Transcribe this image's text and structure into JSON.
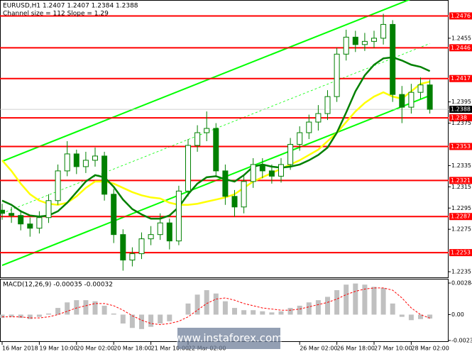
{
  "chart_data": [
    {
      "type": "candlestick",
      "title": "EURUSD,H1  1.2407 1.2407 1.2384 1.2388",
      "subtitle": "Channel size = 112 Slope = 1.29",
      "categories": [
        "16 Mar 2018",
        null,
        null,
        null,
        "19 Mar 10:00",
        null,
        null,
        null,
        "20 Mar 02:00",
        null,
        null,
        null,
        "20 Mar 18:00",
        null,
        null,
        null,
        "21 Mar 10:00",
        null,
        null,
        null,
        "22 Mar 02:00",
        null,
        null,
        null,
        null,
        null,
        null,
        null,
        null,
        null,
        null,
        null,
        "26 Mar 02:00",
        null,
        null,
        null,
        "26 Mar 18:00",
        null,
        null,
        null,
        "27 Mar 10:00",
        null,
        null,
        null,
        "28 Mar 02:00",
        null,
        null
      ],
      "open": [
        1.2293,
        1.229,
        1.2288,
        1.228,
        1.2276,
        1.2286,
        1.2302,
        1.233,
        1.2346,
        1.2334,
        1.234,
        1.2344,
        1.2308,
        1.227,
        1.2246,
        1.2252,
        1.2266,
        1.227,
        1.2281,
        1.2264,
        1.2311,
        1.2354,
        1.2366,
        1.237,
        1.233,
        1.2306,
        1.2296,
        1.232,
        1.2336,
        1.233,
        1.2325,
        1.2336,
        1.2355,
        1.2366,
        1.2376,
        1.2384,
        1.24,
        1.244,
        1.2456,
        1.2449,
        1.2452,
        1.2455,
        1.2468,
        1.2402,
        1.239,
        1.2404,
        1.2411
      ],
      "high": [
        1.2299,
        1.2296,
        1.2293,
        1.2286,
        1.2292,
        1.2308,
        1.2336,
        1.2358,
        1.235,
        1.2348,
        1.2352,
        1.2348,
        1.2313,
        1.2275,
        1.2258,
        1.2272,
        1.2278,
        1.229,
        1.2285,
        1.2316,
        1.236,
        1.2373,
        1.2386,
        1.2375,
        1.2336,
        1.2312,
        1.2326,
        1.2342,
        1.2342,
        1.2336,
        1.2342,
        1.2361,
        1.2372,
        1.2383,
        1.2392,
        1.2406,
        1.2446,
        1.2463,
        1.2462,
        1.246,
        1.2462,
        1.2478,
        1.2472,
        1.241,
        1.2412,
        1.2418,
        1.2416
      ],
      "low": [
        1.2284,
        1.2281,
        1.2274,
        1.2268,
        1.2271,
        1.2281,
        1.2298,
        1.2325,
        1.2327,
        1.2328,
        1.2334,
        1.2302,
        1.2262,
        1.2236,
        1.224,
        1.2247,
        1.226,
        1.2265,
        1.2256,
        1.226,
        1.2306,
        1.2348,
        1.2358,
        1.2324,
        1.2298,
        1.2287,
        1.229,
        1.2314,
        1.2323,
        1.2318,
        1.2319,
        1.2331,
        1.2349,
        1.236,
        1.2368,
        1.2378,
        1.2395,
        1.2434,
        1.2442,
        1.2443,
        1.2446,
        1.2449,
        1.2395,
        1.2375,
        1.2384,
        1.2398,
        1.2384
      ],
      "close": [
        1.229,
        1.2288,
        1.228,
        1.2276,
        1.2286,
        1.2302,
        1.233,
        1.2346,
        1.2334,
        1.234,
        1.2344,
        1.2308,
        1.227,
        1.2246,
        1.2252,
        1.2266,
        1.227,
        1.2281,
        1.2264,
        1.2311,
        1.2354,
        1.2366,
        1.237,
        1.233,
        1.2306,
        1.2296,
        1.232,
        1.2336,
        1.233,
        1.2325,
        1.2336,
        1.2355,
        1.2366,
        1.2376,
        1.2384,
        1.24,
        1.244,
        1.2456,
        1.2449,
        1.2452,
        1.2455,
        1.2468,
        1.2402,
        1.239,
        1.2404,
        1.2411,
        1.2388
      ],
      "color": "#008000",
      "moving_averages": [
        {
          "color": "#ffff00",
          "values": [
            1.234,
            1.233,
            1.2318,
            1.2308,
            1.2302,
            1.2299,
            1.2298,
            1.23,
            1.2306,
            1.2314,
            1.232,
            1.232,
            1.2318,
            1.2314,
            1.231,
            1.2307,
            1.2305,
            1.2304,
            1.23,
            1.2298,
            1.2298,
            1.2299,
            1.2301,
            1.2303,
            1.2305,
            1.2308,
            1.2314,
            1.232,
            1.2324,
            1.2328,
            1.2332,
            1.2336,
            1.234,
            1.2345,
            1.235,
            1.2358,
            1.2366,
            1.2376,
            1.2386,
            1.2394,
            1.24,
            1.2404,
            1.24,
            1.2398,
            1.2405,
            1.2412,
            1.2414
          ]
        },
        {
          "color": "#008000",
          "values": [
            1.2302,
            1.2298,
            1.2292,
            1.2288,
            1.2287,
            1.2288,
            1.2292,
            1.23,
            1.231,
            1.232,
            1.2326,
            1.2324,
            1.2315,
            1.2303,
            1.2294,
            1.2289,
            1.2285,
            1.2285,
            1.2288,
            1.2296,
            1.2308,
            1.2318,
            1.2324,
            1.2325,
            1.2322,
            1.232,
            1.2326,
            1.2334,
            1.2336,
            1.2334,
            1.2333,
            1.2334,
            1.2336,
            1.234,
            1.2345,
            1.2352,
            1.2366,
            1.2385,
            1.2405,
            1.242,
            1.243,
            1.2436,
            1.2437,
            1.2434,
            1.243,
            1.2428,
            1.2424
          ]
        }
      ],
      "channel": {
        "color": "#00ff00",
        "x": [
          0,
          46
        ],
        "lines": [
          [
            1.2339,
            1.2499
          ],
          [
            1.229,
            1.245
          ],
          [
            1.2241,
            1.2401
          ]
        ]
      },
      "levels": {
        "color": "#ff0000",
        "values": [
          1.2476,
          1.2446,
          1.2417,
          1.238,
          1.2353,
          1.2321,
          1.2287,
          1.2253
        ]
      },
      "current_price": 1.2388,
      "ylim": [
        1.2229,
        1.2491
      ],
      "yticks": [
        1.2455,
        1.2395,
        1.2375,
        1.2335,
        1.2315,
        1.2295,
        1.2275,
        1.2235
      ],
      "watermark": "www.instaforex.com"
    },
    {
      "type": "macd",
      "title": "MACD(12,26,9) -0.00035 -0.00032",
      "color": "#c0c0c0",
      "signal_color": "#ff0000",
      "values": [
        -0.0003,
        -0.0002,
        -0.0003,
        -0.0004,
        -0.0002,
        0.0001,
        0.0006,
        0.0011,
        0.0013,
        0.0013,
        0.0012,
        0.0008,
        0.0001,
        -0.0008,
        -0.0012,
        -0.0013,
        -0.0011,
        -0.0008,
        -0.0006,
        0.0,
        0.001,
        0.0018,
        0.0022,
        0.0019,
        0.0012,
        0.0006,
        0.0004,
        0.0004,
        0.0003,
        0.0002,
        0.0003,
        0.0006,
        0.0008,
        0.0011,
        0.0013,
        0.0016,
        0.0022,
        0.0027,
        0.0028,
        0.0027,
        0.0025,
        0.0024,
        0.001,
        -0.0002,
        -0.0005,
        -0.0004,
        -0.00035
      ],
      "signal": [
        -0.0002,
        -0.0002,
        -0.0002,
        -0.0003,
        -0.0003,
        -0.0002,
        0.0,
        0.0003,
        0.0006,
        0.0008,
        0.001,
        0.001,
        0.0008,
        0.0004,
        -0.0001,
        -0.0005,
        -0.0008,
        -0.0009,
        -0.0008,
        -0.0006,
        -0.0002,
        0.0004,
        0.001,
        0.0014,
        0.0015,
        0.0013,
        0.001,
        0.0008,
        0.0006,
        0.0005,
        0.0004,
        0.0004,
        0.0005,
        0.0007,
        0.0009,
        0.0011,
        0.0014,
        0.0018,
        0.0021,
        0.0023,
        0.0024,
        0.0024,
        0.0022,
        0.0015,
        0.0006,
        0.0,
        -0.00032
      ],
      "ylim": [
        -0.00246,
        0.00316
      ],
      "yticks": [
        0.00284,
        {
          "value": 0,
          "label": "0.00"
        },
        -0.00233
      ]
    }
  ]
}
